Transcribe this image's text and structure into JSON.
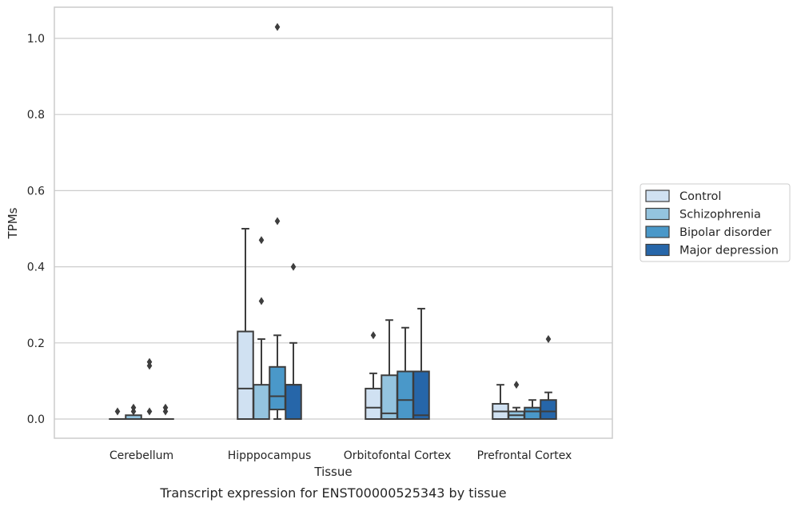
{
  "chart_data": {
    "type": "box",
    "title": "Transcript expression for ENST00000525343 by tissue",
    "xlabel": "Tissue",
    "ylabel": "TPMs",
    "ylim": [
      -0.05,
      1.08
    ],
    "yticks": [
      "0.0",
      "0.2",
      "0.4",
      "0.6",
      "0.8",
      "1.0"
    ],
    "grid": true,
    "legend_position": "right",
    "categories": [
      "Cerebellum",
      "Hipppocampus",
      "Orbitofontal Cortex",
      "Prefrontal Cortex"
    ],
    "series": [
      {
        "name": "Control",
        "color": "#d0e1f2",
        "boxes": [
          {
            "whislo": 0,
            "q1": 0,
            "med": 0,
            "q3": 0,
            "whishi": 0,
            "fliers": [
              0.02
            ]
          },
          {
            "whislo": 0,
            "q1": 0,
            "med": 0.08,
            "q3": 0.23,
            "whishi": 0.5,
            "fliers": []
          },
          {
            "whislo": 0,
            "q1": 0,
            "med": 0.03,
            "q3": 0.08,
            "whishi": 0.12,
            "fliers": [
              0.22
            ]
          },
          {
            "whislo": 0,
            "q1": 0,
            "med": 0.02,
            "q3": 0.04,
            "whishi": 0.09,
            "fliers": []
          }
        ]
      },
      {
        "name": "Schizophrenia",
        "color": "#94c4df",
        "boxes": [
          {
            "whislo": 0,
            "q1": 0,
            "med": 0,
            "q3": 0.01,
            "whishi": 0.01,
            "fliers": [
              0.02,
              0.03
            ]
          },
          {
            "whislo": 0,
            "q1": 0,
            "med": 0,
            "q3": 0.09,
            "whishi": 0.21,
            "fliers": [
              0.31,
              0.47
            ]
          },
          {
            "whislo": 0,
            "q1": 0,
            "med": 0.015,
            "q3": 0.115,
            "whishi": 0.26,
            "fliers": []
          },
          {
            "whislo": 0,
            "q1": 0,
            "med": 0.01,
            "q3": 0.02,
            "whishi": 0.03,
            "fliers": [
              0.09
            ]
          }
        ]
      },
      {
        "name": "Bipolar disorder",
        "color": "#4a98c9",
        "boxes": [
          {
            "whislo": 0,
            "q1": 0,
            "med": 0,
            "q3": 0,
            "whishi": 0,
            "fliers": [
              0.02,
              0.14,
              0.15
            ]
          },
          {
            "whislo": 0,
            "q1": 0.025,
            "med": 0.06,
            "q3": 0.137,
            "whishi": 0.22,
            "fliers": [
              0.52,
              1.03
            ]
          },
          {
            "whislo": 0,
            "q1": 0,
            "med": 0.05,
            "q3": 0.125,
            "whishi": 0.24,
            "fliers": []
          },
          {
            "whislo": 0,
            "q1": 0,
            "med": 0.02,
            "q3": 0.03,
            "whishi": 0.05,
            "fliers": []
          }
        ]
      },
      {
        "name": "Major depression",
        "color": "#2666a9",
        "boxes": [
          {
            "whislo": 0,
            "q1": 0,
            "med": 0,
            "q3": 0,
            "whishi": 0,
            "fliers": [
              0.02,
              0.03
            ]
          },
          {
            "whislo": 0,
            "q1": 0,
            "med": 0.09,
            "q3": 0.09,
            "whishi": 0.2,
            "fliers": [
              0.4
            ]
          },
          {
            "whislo": 0,
            "q1": 0,
            "med": 0.01,
            "q3": 0.125,
            "whishi": 0.29,
            "fliers": []
          },
          {
            "whislo": 0,
            "q1": 0,
            "med": 0.02,
            "q3": 0.05,
            "whishi": 0.07,
            "fliers": [
              0.21
            ]
          }
        ]
      }
    ]
  }
}
